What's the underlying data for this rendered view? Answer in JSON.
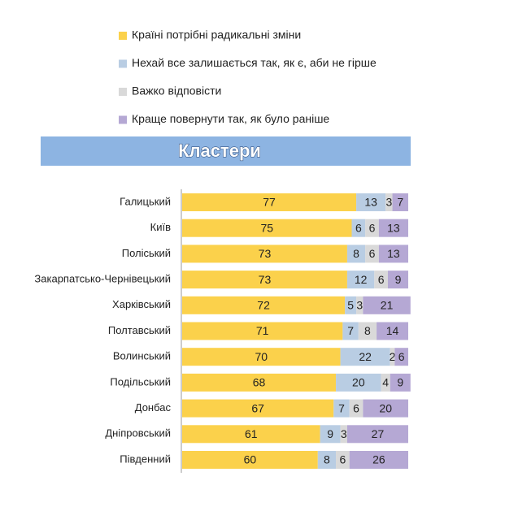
{
  "chart_data": {
    "type": "bar",
    "orientation": "horizontal",
    "stacked": true,
    "title": "Кластери",
    "categories": [
      "Галицький",
      "Київ",
      "Поліський",
      "Закарпатсько-Чернівецький",
      "Харківський",
      "Полтавський",
      "Волинський",
      "Подільський",
      "Донбас",
      "Дніпровський",
      "Південний"
    ],
    "series": [
      {
        "name": "Країні потрібні радикальні зміни",
        "color": "#fbd14b",
        "values": [
          77,
          75,
          73,
          73,
          72,
          71,
          70,
          68,
          67,
          61,
          60
        ]
      },
      {
        "name": "Нехай все залишається так, як є, аби не гірше",
        "color": "#b9cde3",
        "values": [
          13,
          6,
          8,
          12,
          5,
          7,
          22,
          20,
          7,
          9,
          8
        ]
      },
      {
        "name": "Важко відповісти",
        "color": "#d9d9d9",
        "values": [
          3,
          6,
          6,
          6,
          3,
          8,
          2,
          4,
          6,
          3,
          6
        ]
      },
      {
        "name": "Краще повернути так, як було раніше",
        "color": "#b5a8d4",
        "values": [
          7,
          13,
          13,
          9,
          21,
          14,
          6,
          9,
          20,
          27,
          26
        ]
      }
    ],
    "xlim": [
      0,
      100
    ]
  }
}
